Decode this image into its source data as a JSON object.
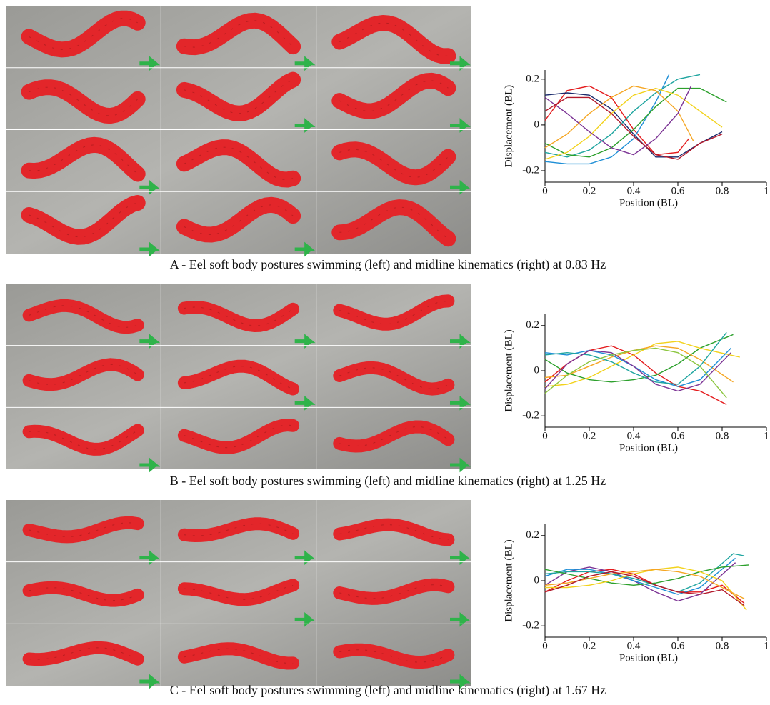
{
  "chart_data": [
    {
      "type": "line",
      "caption": "A - Eel soft body postures swimming (left) and midline kinematics (right) at 0.83 Hz",
      "xlabel": "Position (BL)",
      "ylabel": "Displacement (BL)",
      "xlim": [
        0,
        1
      ],
      "ylim": [
        -0.25,
        0.24
      ],
      "xticks": [
        0,
        0.2,
        0.4,
        0.6,
        0.8,
        1
      ],
      "yticks": [
        -0.2,
        0,
        0.2
      ],
      "series": [
        {
          "color": "#e41a1c",
          "x": [
            0,
            0.1,
            0.2,
            0.3,
            0.4,
            0.5,
            0.6,
            0.65
          ],
          "values": [
            0.02,
            0.15,
            0.17,
            0.12,
            -0.02,
            -0.13,
            -0.12,
            -0.06
          ]
        },
        {
          "color": "#1a2a6c",
          "x": [
            0,
            0.1,
            0.2,
            0.3,
            0.4,
            0.5,
            0.6,
            0.7,
            0.8
          ],
          "values": [
            0.13,
            0.14,
            0.13,
            0.07,
            -0.04,
            -0.14,
            -0.14,
            -0.08,
            -0.03
          ]
        },
        {
          "color": "#1f8fd6",
          "x": [
            0,
            0.1,
            0.2,
            0.3,
            0.4,
            0.5,
            0.56
          ],
          "values": [
            -0.16,
            -0.17,
            -0.17,
            -0.14,
            -0.06,
            0.1,
            0.22
          ]
        },
        {
          "color": "#1fa5a0",
          "x": [
            0,
            0.1,
            0.2,
            0.3,
            0.4,
            0.5,
            0.6,
            0.7
          ],
          "values": [
            -0.12,
            -0.14,
            -0.11,
            -0.04,
            0.06,
            0.14,
            0.2,
            0.22
          ]
        },
        {
          "color": "#2ca02c",
          "x": [
            0,
            0.1,
            0.2,
            0.3,
            0.4,
            0.5,
            0.6,
            0.7,
            0.82
          ],
          "values": [
            -0.08,
            -0.13,
            -0.14,
            -0.1,
            -0.02,
            0.08,
            0.16,
            0.16,
            0.1
          ]
        },
        {
          "color": "#f2d21b",
          "x": [
            0,
            0.1,
            0.2,
            0.3,
            0.4,
            0.5,
            0.6,
            0.7,
            0.8
          ],
          "values": [
            -0.15,
            -0.12,
            -0.05,
            0.05,
            0.13,
            0.16,
            0.13,
            0.06,
            -0.01
          ]
        },
        {
          "color": "#f5a623",
          "x": [
            0,
            0.1,
            0.2,
            0.3,
            0.4,
            0.5,
            0.6,
            0.67
          ],
          "values": [
            -0.1,
            -0.04,
            0.05,
            0.12,
            0.17,
            0.15,
            0.06,
            -0.07
          ]
        },
        {
          "color": "#7b3294",
          "x": [
            0,
            0.1,
            0.2,
            0.3,
            0.4,
            0.5,
            0.6,
            0.66
          ],
          "values": [
            0.12,
            0.05,
            -0.03,
            -0.1,
            -0.13,
            -0.06,
            0.05,
            0.17
          ]
        },
        {
          "color": "#b2182b",
          "x": [
            0,
            0.1,
            0.2,
            0.3,
            0.4,
            0.5,
            0.6,
            0.7,
            0.8
          ],
          "values": [
            0.06,
            0.12,
            0.12,
            0.05,
            -0.05,
            -0.13,
            -0.15,
            -0.08,
            -0.04
          ]
        }
      ]
    },
    {
      "type": "line",
      "caption": "B - Eel soft body postures swimming (left) and midline kinematics (right) at 1.25 Hz",
      "xlabel": "Position (BL)",
      "ylabel": "Displacement (BL)",
      "xlim": [
        0,
        1
      ],
      "ylim": [
        -0.25,
        0.25
      ],
      "xticks": [
        0,
        0.2,
        0.4,
        0.6,
        0.8,
        1
      ],
      "yticks": [
        -0.2,
        0,
        0.2
      ],
      "series": [
        {
          "color": "#e41a1c",
          "x": [
            0,
            0.1,
            0.2,
            0.3,
            0.4,
            0.5,
            0.6,
            0.7,
            0.82
          ],
          "values": [
            -0.05,
            0.03,
            0.09,
            0.11,
            0.07,
            -0.01,
            -0.07,
            -0.09,
            -0.15
          ]
        },
        {
          "color": "#2ca02c",
          "x": [
            0,
            0.1,
            0.2,
            0.3,
            0.4,
            0.5,
            0.6,
            0.7,
            0.85
          ],
          "values": [
            0.05,
            -0.01,
            -0.04,
            -0.05,
            -0.04,
            -0.02,
            0.03,
            0.1,
            0.16
          ]
        },
        {
          "color": "#f2d21b",
          "x": [
            0,
            0.1,
            0.2,
            0.3,
            0.4,
            0.5,
            0.6,
            0.7,
            0.88
          ],
          "values": [
            -0.07,
            -0.06,
            -0.03,
            0.02,
            0.07,
            0.12,
            0.13,
            0.1,
            0.06
          ]
        },
        {
          "color": "#f5a623",
          "x": [
            0,
            0.1,
            0.2,
            0.3,
            0.4,
            0.5,
            0.6,
            0.7,
            0.85
          ],
          "values": [
            -0.03,
            -0.02,
            0.02,
            0.06,
            0.09,
            0.11,
            0.1,
            0.05,
            -0.05
          ]
        },
        {
          "color": "#1f8fd6",
          "x": [
            0,
            0.1,
            0.2,
            0.3,
            0.4,
            0.5,
            0.6,
            0.7,
            0.84
          ],
          "values": [
            0.08,
            0.07,
            0.09,
            0.07,
            0.02,
            -0.04,
            -0.07,
            -0.04,
            0.1
          ]
        },
        {
          "color": "#1fa5a0",
          "x": [
            0,
            0.1,
            0.2,
            0.3,
            0.4,
            0.5,
            0.6,
            0.7,
            0.82
          ],
          "values": [
            0.07,
            0.08,
            0.07,
            0.04,
            -0.01,
            -0.05,
            -0.06,
            0.02,
            0.17
          ]
        },
        {
          "color": "#7b3294",
          "x": [
            0,
            0.1,
            0.2,
            0.3,
            0.4,
            0.5,
            0.6,
            0.7,
            0.84
          ],
          "values": [
            -0.08,
            0.03,
            0.09,
            0.08,
            0.02,
            -0.06,
            -0.09,
            -0.06,
            0.08
          ]
        },
        {
          "color": "#8cc63f",
          "x": [
            0,
            0.1,
            0.2,
            0.3,
            0.4,
            0.5,
            0.6,
            0.7,
            0.82
          ],
          "values": [
            -0.1,
            -0.02,
            0.04,
            0.07,
            0.09,
            0.1,
            0.08,
            0.02,
            -0.12
          ]
        }
      ]
    },
    {
      "type": "line",
      "caption": "C - Eel soft body postures swimming (left) and midline kinematics (right) at 1.67 Hz",
      "xlabel": "Position (BL)",
      "ylabel": "Displacement (BL)",
      "xlim": [
        0,
        1
      ],
      "ylim": [
        -0.25,
        0.25
      ],
      "xticks": [
        0,
        0.2,
        0.4,
        0.6,
        0.8,
        1
      ],
      "yticks": [
        -0.2,
        0,
        0.2
      ],
      "series": [
        {
          "color": "#e41a1c",
          "x": [
            0,
            0.1,
            0.2,
            0.3,
            0.4,
            0.5,
            0.6,
            0.7,
            0.8,
            0.9
          ],
          "values": [
            -0.05,
            0.0,
            0.04,
            0.05,
            0.03,
            -0.02,
            -0.05,
            -0.05,
            -0.02,
            -0.1
          ]
        },
        {
          "color": "#7b3294",
          "x": [
            0,
            0.1,
            0.2,
            0.3,
            0.4,
            0.5,
            0.6,
            0.7,
            0.86
          ],
          "values": [
            -0.02,
            0.04,
            0.06,
            0.04,
            0.0,
            -0.05,
            -0.09,
            -0.06,
            0.08
          ]
        },
        {
          "color": "#1f8fd6",
          "x": [
            0,
            0.1,
            0.2,
            0.3,
            0.4,
            0.5,
            0.6,
            0.7,
            0.86
          ],
          "values": [
            0.02,
            0.05,
            0.05,
            0.03,
            0.0,
            -0.03,
            -0.06,
            -0.03,
            0.1
          ]
        },
        {
          "color": "#1fa5a0",
          "x": [
            0,
            0.1,
            0.2,
            0.3,
            0.4,
            0.5,
            0.6,
            0.7,
            0.85,
            0.9
          ],
          "values": [
            0.03,
            0.04,
            0.04,
            0.03,
            0.01,
            -0.02,
            -0.05,
            -0.01,
            0.12,
            0.11
          ]
        },
        {
          "color": "#2ca02c",
          "x": [
            0,
            0.1,
            0.2,
            0.3,
            0.4,
            0.5,
            0.6,
            0.7,
            0.8,
            0.92
          ],
          "values": [
            0.05,
            0.03,
            0.01,
            -0.01,
            -0.02,
            -0.01,
            0.01,
            0.04,
            0.06,
            0.07
          ]
        },
        {
          "color": "#f2d21b",
          "x": [
            0,
            0.1,
            0.2,
            0.3,
            0.4,
            0.5,
            0.6,
            0.7,
            0.8,
            0.91
          ],
          "values": [
            -0.03,
            -0.03,
            -0.02,
            0.0,
            0.03,
            0.05,
            0.06,
            0.04,
            0.0,
            -0.13
          ]
        },
        {
          "color": "#f5a623",
          "x": [
            0,
            0.1,
            0.2,
            0.3,
            0.4,
            0.5,
            0.6,
            0.7,
            0.8,
            0.9
          ],
          "values": [
            -0.02,
            -0.01,
            0.01,
            0.03,
            0.04,
            0.05,
            0.04,
            0.02,
            -0.03,
            -0.08
          ]
        },
        {
          "color": "#b2182b",
          "x": [
            0,
            0.1,
            0.2,
            0.3,
            0.4,
            0.5,
            0.6,
            0.7,
            0.8,
            0.9
          ],
          "values": [
            -0.05,
            -0.02,
            0.02,
            0.04,
            0.02,
            -0.02,
            -0.05,
            -0.06,
            -0.04,
            -0.11
          ]
        }
      ]
    }
  ]
}
